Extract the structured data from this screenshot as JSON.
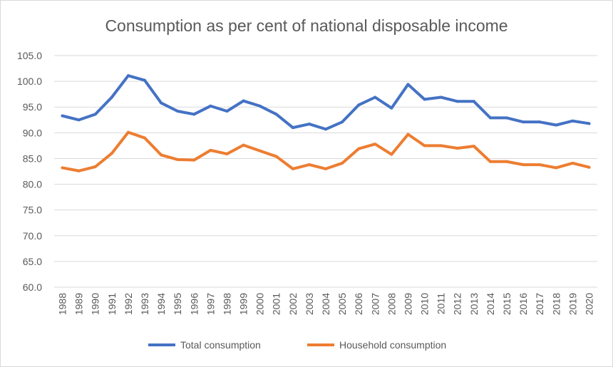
{
  "chart_data": {
    "type": "line",
    "title": "Consumption as per cent of national disposable income",
    "xlabel": "",
    "ylabel": "",
    "ylim": [
      60,
      105
    ],
    "yticks": [
      "60.0",
      "65.0",
      "70.0",
      "75.0",
      "80.0",
      "85.0",
      "90.0",
      "95.0",
      "100.0",
      "105.0"
    ],
    "grid": true,
    "legend": "bottom",
    "categories": [
      "1988",
      "1989",
      "1990",
      "1991",
      "1992",
      "1993",
      "1994",
      "1995",
      "1996",
      "1997",
      "1998",
      "1999",
      "2000",
      "2001",
      "2002",
      "2003",
      "2004",
      "2005",
      "2006",
      "2007",
      "2008",
      "2009",
      "2010",
      "2011",
      "2012",
      "2013",
      "2014",
      "2015",
      "2016",
      "2017",
      "2018",
      "2019",
      "2020"
    ],
    "series": [
      {
        "name": "Total consumption",
        "color": "#4472C4",
        "values": [
          93.3,
          92.5,
          93.6,
          96.9,
          101.1,
          100.2,
          95.8,
          94.2,
          93.6,
          95.2,
          94.2,
          96.2,
          95.2,
          93.6,
          91.0,
          91.7,
          90.7,
          92.1,
          95.4,
          96.9,
          94.8,
          99.4,
          96.5,
          96.9,
          96.1,
          96.1,
          92.9,
          92.9,
          92.1,
          92.1,
          91.5,
          92.3,
          91.8
        ]
      },
      {
        "name": "Household consumption",
        "color": "#ED7D31",
        "values": [
          83.2,
          82.6,
          83.4,
          86.0,
          90.1,
          89.0,
          85.7,
          84.8,
          84.7,
          86.6,
          85.9,
          87.6,
          86.5,
          85.4,
          83.0,
          83.8,
          83.0,
          84.1,
          86.9,
          87.8,
          85.8,
          89.7,
          87.5,
          87.5,
          87.0,
          87.4,
          84.4,
          84.4,
          83.8,
          83.8,
          83.2,
          84.1,
          83.3
        ]
      }
    ]
  }
}
